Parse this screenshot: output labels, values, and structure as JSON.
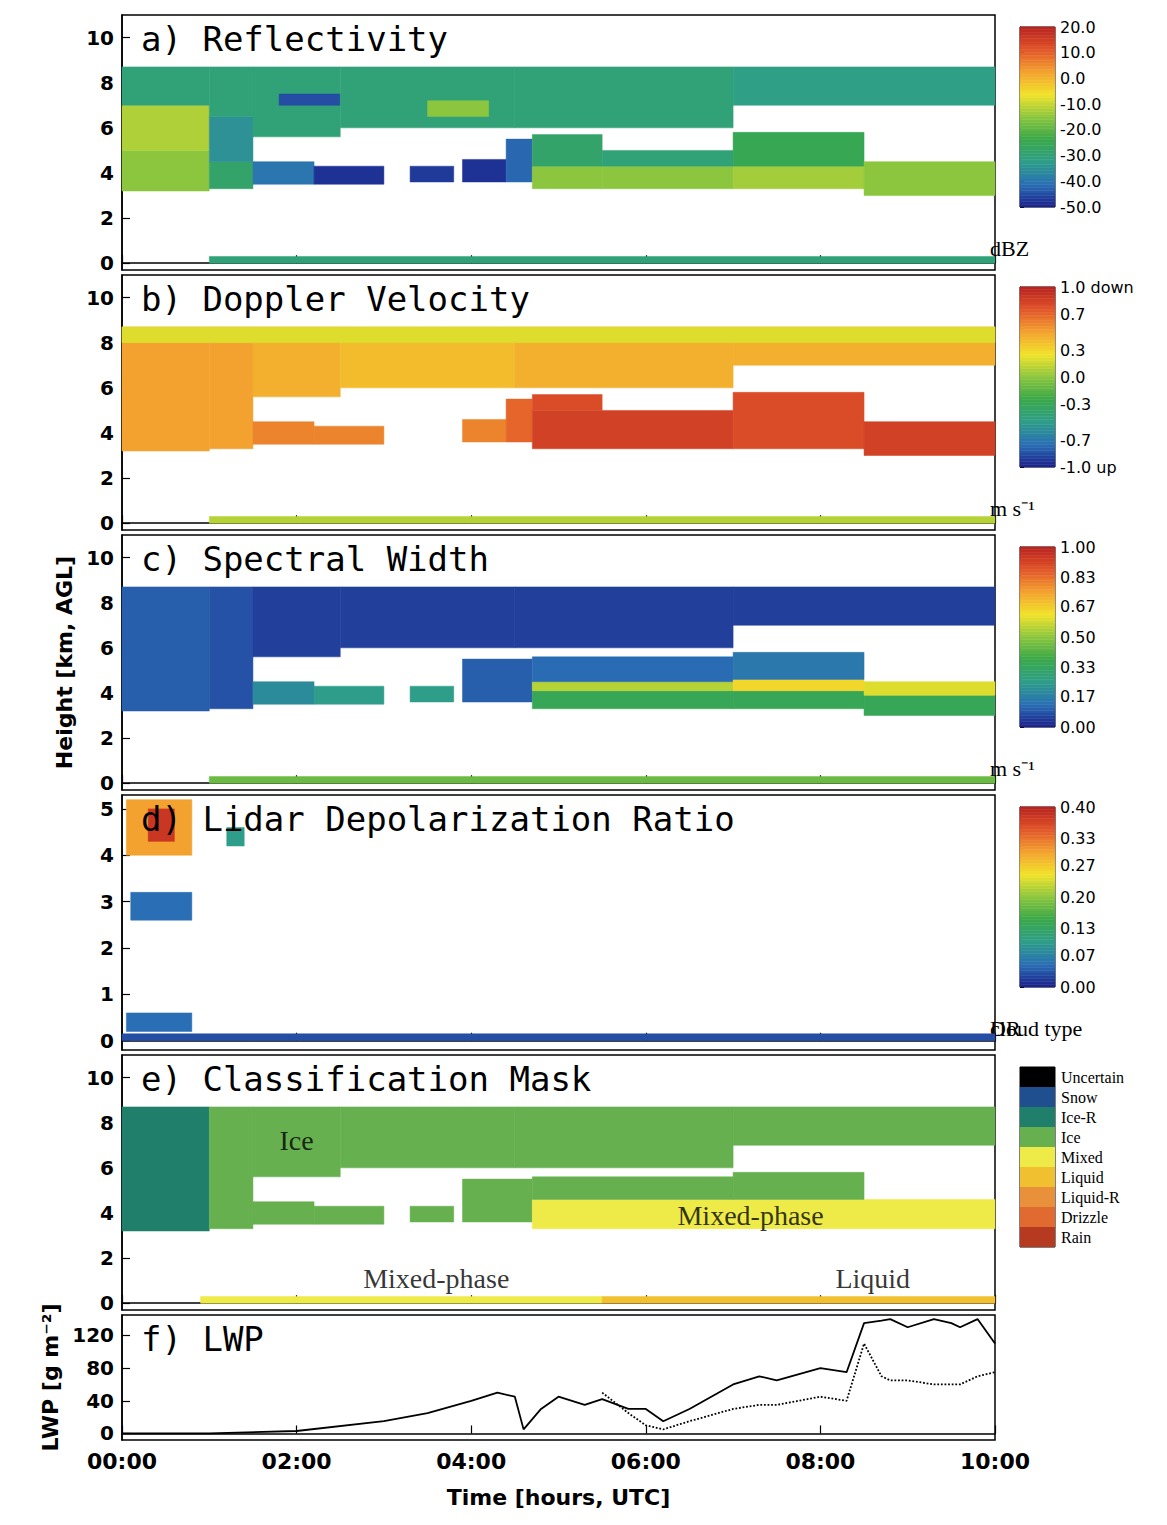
{
  "chart_data": [
    {
      "type": "heatmap",
      "title": "a) Reflectivity",
      "xlim": [
        0,
        10
      ],
      "xticks": [
        {
          "value": 0,
          "label": "00:00"
        },
        {
          "value": 2,
          "label": "02:00"
        },
        {
          "value": 4,
          "label": "04:00"
        },
        {
          "value": 6,
          "label": "06:00"
        },
        {
          "value": 8,
          "label": "08:00"
        },
        {
          "value": 10,
          "label": "10:00"
        }
      ],
      "ylim": [
        -0.3,
        11.0
      ],
      "yticks": [
        0,
        2,
        4,
        6,
        8,
        10
      ],
      "tick_labels": "y",
      "cells": [
        [
          0,
          1,
          3.2,
          5.0,
          -15
        ],
        [
          0,
          1,
          5.0,
          7.0,
          -12
        ],
        [
          0,
          1,
          7.0,
          8.7,
          -30
        ],
        [
          1,
          1.5,
          3.3,
          4.5,
          -28
        ],
        [
          1,
          1.5,
          4.5,
          6.5,
          -35
        ],
        [
          1,
          1.5,
          6.5,
          8.7,
          -30
        ],
        [
          1.5,
          2.2,
          3.5,
          4.5,
          -40
        ],
        [
          1.5,
          2.5,
          5.6,
          8.7,
          -30
        ],
        [
          1.8,
          2.5,
          7.0,
          7.5,
          -45
        ],
        [
          2.2,
          3.0,
          3.5,
          4.3,
          -48
        ],
        [
          2.5,
          4.5,
          6.0,
          8.7,
          -30
        ],
        [
          3.5,
          4.2,
          6.5,
          7.2,
          -15
        ],
        [
          3.3,
          3.8,
          3.6,
          4.3,
          -47
        ],
        [
          3.9,
          4.4,
          3.6,
          4.6,
          -48
        ],
        [
          4.4,
          4.7,
          3.6,
          5.5,
          -42
        ],
        [
          4.7,
          5.5,
          3.3,
          4.3,
          -15
        ],
        [
          4.7,
          5.5,
          4.3,
          5.7,
          -28
        ],
        [
          4.5,
          7,
          6.0,
          8.7,
          -30
        ],
        [
          5.5,
          7,
          3.3,
          4.3,
          -15
        ],
        [
          5.5,
          7,
          4.3,
          5.0,
          -30
        ],
        [
          7,
          8.5,
          3.3,
          4.3,
          -13
        ],
        [
          7,
          8.5,
          4.3,
          5.8,
          -25
        ],
        [
          7,
          10,
          7.0,
          8.7,
          -32
        ],
        [
          8.5,
          10,
          3.0,
          4.5,
          -15
        ],
        [
          1,
          10,
          0,
          0.3,
          -30
        ]
      ],
      "colorbar": {
        "range": [
          -50,
          20
        ],
        "ticks": [
          {
            "value": 20,
            "label": "20.0"
          },
          {
            "value": 10,
            "label": "10.0"
          },
          {
            "value": 0,
            "label": "0.0"
          },
          {
            "value": -10,
            "label": "-10.0"
          },
          {
            "value": -20,
            "label": "-20.0"
          },
          {
            "value": -30,
            "label": "-30.0"
          },
          {
            "value": -40,
            "label": "-40.0"
          },
          {
            "value": -50,
            "label": "-50.0"
          }
        ],
        "label": "dBZ"
      }
    },
    {
      "type": "heatmap",
      "title": "b) Doppler Velocity",
      "xlim": [
        0,
        10
      ],
      "xticks": [
        {
          "value": 0,
          "label": "00:00"
        },
        {
          "value": 2,
          "label": "02:00"
        },
        {
          "value": 4,
          "label": "04:00"
        },
        {
          "value": 6,
          "label": "06:00"
        },
        {
          "value": 8,
          "label": "08:00"
        },
        {
          "value": 10,
          "label": "10:00"
        }
      ],
      "ylim": [
        -0.3,
        11.0
      ],
      "yticks": [
        0,
        2,
        4,
        6,
        8,
        10
      ],
      "tick_labels": "y",
      "cells": [
        [
          0,
          1,
          3.2,
          8.7,
          0.5
        ],
        [
          1,
          1.5,
          3.3,
          8.7,
          0.5
        ],
        [
          1.5,
          2.5,
          5.6,
          8.7,
          0.45
        ],
        [
          1.5,
          2.2,
          3.5,
          4.5,
          0.6
        ],
        [
          2.2,
          3.0,
          3.5,
          4.3,
          0.6
        ],
        [
          2.5,
          4.5,
          6.0,
          8.7,
          0.4
        ],
        [
          3.9,
          4.4,
          3.6,
          4.6,
          0.6
        ],
        [
          4.4,
          4.7,
          3.6,
          5.5,
          0.7
        ],
        [
          4.7,
          7,
          3.3,
          5.0,
          0.85
        ],
        [
          4.7,
          5.5,
          5.0,
          5.7,
          0.8
        ],
        [
          4.5,
          7,
          6.0,
          8.7,
          0.45
        ],
        [
          7,
          8.5,
          3.3,
          5.8,
          0.8
        ],
        [
          7,
          10,
          7.0,
          8.7,
          0.45
        ],
        [
          8.5,
          10,
          3.0,
          4.5,
          0.85
        ],
        [
          0,
          10,
          8.0,
          8.7,
          0.2
        ],
        [
          1,
          10,
          0,
          0.3,
          0.1
        ]
      ],
      "colorbar": {
        "range": [
          -1,
          1
        ],
        "ticks": [
          {
            "value": 1,
            "label": "1.0 down"
          },
          0.7,
          0.3,
          {
            "value": 0,
            "label": "0.0"
          },
          -0.3,
          -0.7,
          {
            "value": -1,
            "label": "-1.0 up"
          }
        ],
        "label": "m s⁻¹"
      }
    },
    {
      "type": "heatmap",
      "title": "c) Spectral Width",
      "xlim": [
        0,
        10
      ],
      "xticks": [
        {
          "value": 0,
          "label": "00:00"
        },
        {
          "value": 2,
          "label": "02:00"
        },
        {
          "value": 4,
          "label": "04:00"
        },
        {
          "value": 6,
          "label": "06:00"
        },
        {
          "value": 8,
          "label": "08:00"
        },
        {
          "value": 10,
          "label": "10:00"
        }
      ],
      "ylim": [
        -0.3,
        11.0
      ],
      "yticks": [
        0,
        2,
        4,
        6,
        8,
        10
      ],
      "tick_labels": "y",
      "ylabel": "Height [km, AGL]",
      "cells": [
        [
          0,
          1,
          3.2,
          8.7,
          0.1
        ],
        [
          1,
          1.5,
          3.3,
          8.7,
          0.08
        ],
        [
          1.5,
          2.5,
          5.6,
          8.7,
          0.05
        ],
        [
          1.5,
          2.2,
          3.5,
          4.5,
          0.2
        ],
        [
          2.2,
          3.0,
          3.5,
          4.3,
          0.25
        ],
        [
          2.5,
          4.5,
          6.0,
          8.7,
          0.05
        ],
        [
          3.3,
          3.8,
          3.6,
          4.3,
          0.25
        ],
        [
          3.9,
          4.7,
          3.6,
          5.5,
          0.1
        ],
        [
          4.7,
          7,
          3.3,
          4.1,
          0.35
        ],
        [
          4.7,
          7,
          4.1,
          4.5,
          0.55
        ],
        [
          4.7,
          7,
          4.5,
          5.6,
          0.12
        ],
        [
          4.5,
          7,
          6.0,
          8.7,
          0.05
        ],
        [
          7,
          8.5,
          3.3,
          4.1,
          0.35
        ],
        [
          7,
          8.5,
          4.1,
          4.6,
          0.65
        ],
        [
          7,
          8.5,
          4.6,
          5.8,
          0.15
        ],
        [
          7,
          10,
          7.0,
          8.7,
          0.05
        ],
        [
          8.5,
          10,
          3.0,
          3.9,
          0.35
        ],
        [
          8.5,
          10,
          3.9,
          4.5,
          0.6
        ],
        [
          1,
          10,
          0,
          0.3,
          0.45
        ]
      ],
      "colorbar": {
        "range": [
          0,
          1
        ],
        "ticks": [
          {
            "value": 1,
            "label": "1.00"
          },
          0.83,
          0.67,
          {
            "value": 0.5,
            "label": "0.50"
          },
          0.33,
          0.17,
          {
            "value": 0,
            "label": "0.00"
          }
        ],
        "label": "m s⁻¹"
      }
    },
    {
      "type": "heatmap",
      "title": "d) Lidar Depolarization Ratio",
      "xlim": [
        0,
        10
      ],
      "xticks": [
        {
          "value": 0,
          "label": "00:00"
        },
        {
          "value": 2,
          "label": "02:00"
        },
        {
          "value": 4,
          "label": "04:00"
        },
        {
          "value": 6,
          "label": "06:00"
        },
        {
          "value": 8,
          "label": "08:00"
        },
        {
          "value": 10,
          "label": "10:00"
        }
      ],
      "ylim": [
        -0.2,
        5.3
      ],
      "yticks": [
        0,
        1,
        2,
        3,
        4,
        5
      ],
      "tick_labels": "y",
      "cells": [
        [
          0.05,
          0.8,
          4.0,
          5.2,
          0.3
        ],
        [
          0.3,
          0.6,
          4.3,
          5.0,
          0.38
        ],
        [
          0.1,
          0.8,
          2.6,
          3.2,
          0.05
        ],
        [
          0.05,
          0.8,
          0.2,
          0.6,
          0.05
        ],
        [
          1.2,
          1.4,
          4.2,
          4.6,
          0.1
        ],
        [
          0,
          10,
          0.0,
          0.15,
          0.03
        ]
      ],
      "colorbar": {
        "range": [
          0,
          0.4
        ],
        "ticks": [
          {
            "value": 0.4,
            "label": "0.40"
          },
          0.33,
          0.27,
          {
            "value": 0.2,
            "label": "0.20"
          },
          0.13,
          0.07,
          {
            "value": 0,
            "label": "0.00"
          }
        ],
        "label": "DR"
      }
    },
    {
      "type": "mask",
      "title": "e) Classification Mask",
      "xlim": [
        0,
        10
      ],
      "xticks": [
        {
          "value": 0,
          "label": "00:00"
        },
        {
          "value": 2,
          "label": "02:00"
        },
        {
          "value": 4,
          "label": "04:00"
        },
        {
          "value": 6,
          "label": "06:00"
        },
        {
          "value": 8,
          "label": "08:00"
        },
        {
          "value": 10,
          "label": "10:00"
        }
      ],
      "ylim": [
        -0.3,
        11.0
      ],
      "yticks": [
        0,
        2,
        4,
        6,
        8,
        10
      ],
      "tick_labels": "y",
      "cells": [
        [
          0,
          1,
          3.2,
          8.7,
          "Ice-R"
        ],
        [
          1,
          1.5,
          3.3,
          8.7,
          "Ice"
        ],
        [
          1.5,
          2.5,
          5.6,
          8.7,
          "Ice"
        ],
        [
          1.5,
          2.2,
          3.5,
          4.5,
          "Ice"
        ],
        [
          2.2,
          3.0,
          3.5,
          4.3,
          "Ice"
        ],
        [
          2.5,
          4.5,
          6.0,
          8.7,
          "Ice"
        ],
        [
          3.3,
          3.8,
          3.6,
          4.3,
          "Ice"
        ],
        [
          3.9,
          4.7,
          3.6,
          5.5,
          "Ice"
        ],
        [
          4.7,
          10,
          3.3,
          4.6,
          "Mixed"
        ],
        [
          4.7,
          7,
          4.6,
          5.6,
          "Ice"
        ],
        [
          4.5,
          7,
          6.0,
          8.7,
          "Ice"
        ],
        [
          7,
          8.5,
          4.6,
          5.8,
          "Ice"
        ],
        [
          7,
          10,
          7.0,
          8.7,
          "Ice"
        ],
        [
          0.9,
          5.5,
          0,
          0.3,
          "Mixed"
        ],
        [
          5.5,
          10,
          0,
          0.3,
          "Liquid"
        ]
      ],
      "classes": [
        {
          "name": "Uncertain",
          "color": "#000000"
        },
        {
          "name": "Snow",
          "color": "#1f4f8f"
        },
        {
          "name": "Ice-R",
          "color": "#1f7f6a"
        },
        {
          "name": "Ice",
          "color": "#66b04f"
        },
        {
          "name": "Mixed",
          "color": "#eeea48"
        },
        {
          "name": "Liquid",
          "color": "#f0c030"
        },
        {
          "name": "Liquid-R",
          "color": "#e8903a"
        },
        {
          "name": "Drizzle",
          "color": "#e06a30"
        },
        {
          "name": "Rain",
          "color": "#b53a20"
        }
      ],
      "colorbar": {
        "label": "cloud type"
      },
      "annotations": [
        {
          "text": "Ice",
          "x": 2.0,
          "y": 7.2
        },
        {
          "text": "Mixed-phase",
          "x": 7.2,
          "y": 3.9
        },
        {
          "text": "Mixed-phase",
          "x": 3.6,
          "y": 1.1
        },
        {
          "text": "Liquid",
          "x": 8.6,
          "y": 1.1
        }
      ]
    },
    {
      "type": "line",
      "title": "f) LWP",
      "xlim": [
        0,
        10
      ],
      "xticks": [
        {
          "value": 0,
          "label": "00:00"
        },
        {
          "value": 2,
          "label": "02:00"
        },
        {
          "value": 4,
          "label": "04:00"
        },
        {
          "value": 6,
          "label": "06:00"
        },
        {
          "value": 8,
          "label": "08:00"
        },
        {
          "value": 10,
          "label": "10:00"
        }
      ],
      "ylim": [
        -8,
        145
      ],
      "yticks": [
        0,
        40,
        80,
        120
      ],
      "xlabel": "Time [hours, UTC]",
      "ylabel": "LWP [g m⁻²]",
      "x": [
        0,
        1,
        2,
        3,
        3.5,
        4,
        4.3,
        4.5,
        4.6,
        4.8,
        5,
        5.3,
        5.5,
        5.8,
        6,
        6.2,
        6.5,
        7,
        7.3,
        7.5,
        8,
        8.3,
        8.5,
        8.7,
        8.8,
        9,
        9.3,
        9.5,
        9.6,
        9.8,
        10
      ],
      "series": [
        {
          "color": "#000000",
          "line_style": "solid",
          "values": [
            0,
            0,
            3,
            15,
            25,
            40,
            50,
            45,
            5,
            30,
            45,
            35,
            42,
            30,
            30,
            15,
            30,
            60,
            70,
            65,
            80,
            75,
            135,
            138,
            140,
            130,
            140,
            135,
            130,
            140,
            110
          ]
        },
        {
          "color": "#000000",
          "line_style": "dotted",
          "values": [
            null,
            null,
            null,
            null,
            null,
            null,
            null,
            null,
            null,
            null,
            null,
            null,
            50,
            25,
            10,
            5,
            15,
            30,
            35,
            35,
            45,
            40,
            110,
            70,
            65,
            65,
            60,
            60,
            60,
            70,
            75
          ]
        }
      ]
    }
  ]
}
